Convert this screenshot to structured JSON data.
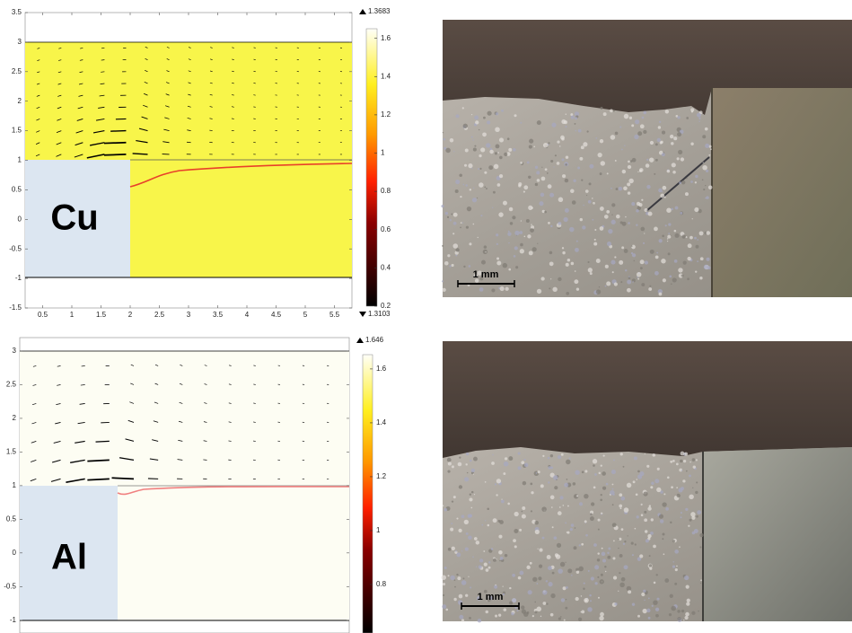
{
  "plots": [
    {
      "label": "Cu",
      "xlim": [
        0.2,
        5.8
      ],
      "ylim": [
        -1.5,
        3.5
      ],
      "xticks": [
        0.5,
        1,
        1.5,
        2,
        2.5,
        3,
        3.5,
        4,
        4.5,
        5,
        5.5
      ],
      "yticks": [
        -1.5,
        -1,
        -0.5,
        0,
        0.5,
        1,
        1.5,
        2,
        2.5,
        3,
        3.5
      ],
      "colorbar": {
        "max": 1.3683,
        "min": 1.3103,
        "lim": [
          0.2,
          1.65
        ],
        "ticks": [
          0.2,
          0.4,
          0.6,
          0.8,
          1,
          1.2,
          1.4,
          1.6
        ]
      }
    },
    {
      "label": "Al",
      "xlim": [
        0.5,
        5.5
      ],
      "ylim": [
        -1.19,
        3.2
      ],
      "yticks": [
        -1,
        -0.5,
        0,
        0.5,
        1,
        1.5,
        2,
        2.5,
        3
      ],
      "colorbar": {
        "max": 1.646,
        "lim": [
          0.62,
          1.653
        ],
        "ticks": [
          0.8,
          1,
          1.2,
          1.4,
          1.6
        ]
      }
    }
  ],
  "photos": [
    {
      "scale_bar": "1 mm"
    },
    {
      "scale_bar": "1 mm"
    }
  ]
}
